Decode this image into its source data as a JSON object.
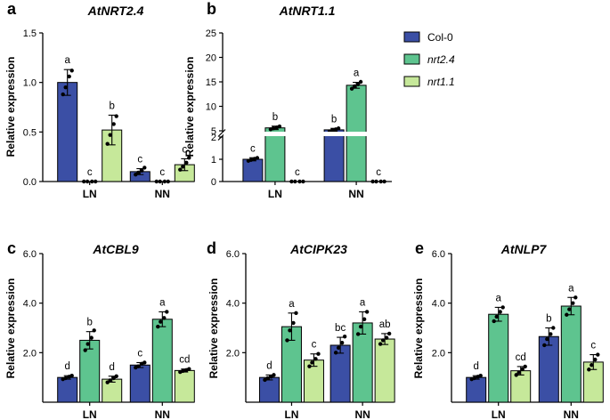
{
  "legend": {
    "entries": [
      {
        "label": "Col-0",
        "italic": false
      },
      {
        "label": "nrt2.4",
        "italic": true
      },
      {
        "label": "nrt1.1",
        "italic": true
      }
    ]
  },
  "series_colors": [
    "#3b4fa5",
    "#5ec48f",
    "#c6e89a"
  ],
  "chart_data": [
    {
      "type": "bar",
      "panel": "a",
      "title": "AtNRT2.4",
      "ylabel": "Relative expression",
      "ylim": [
        0,
        1.5
      ],
      "yticks": [
        0,
        0.5,
        1.0,
        1.5
      ],
      "ytick_labels": [
        "0.0",
        "0.5",
        "1.0",
        "1.5"
      ],
      "categories": [
        "LN",
        "NN"
      ],
      "series": [
        {
          "name": "Col-0",
          "values": [
            1.0,
            0.1
          ],
          "errors": [
            0.13,
            0.03
          ],
          "letters": [
            "a",
            "c"
          ],
          "points": [
            [
              0.88,
              0.95,
              1.06,
              1.12
            ],
            [
              0.07,
              0.09,
              0.11,
              0.14
            ]
          ]
        },
        {
          "name": "nrt2.4",
          "values": [
            0.0,
            0.0
          ],
          "errors": [
            0.005,
            0.005
          ],
          "letters": [
            "c",
            "c"
          ],
          "points": [
            [
              0,
              0,
              0,
              0
            ],
            [
              0,
              0,
              0,
              0
            ]
          ]
        },
        {
          "name": "nrt1.1",
          "values": [
            0.52,
            0.17
          ],
          "errors": [
            0.15,
            0.06
          ],
          "letters": [
            "b",
            "c"
          ],
          "points": [
            [
              0.38,
              0.47,
              0.58,
              0.66
            ],
            [
              0.12,
              0.15,
              0.19,
              0.24
            ]
          ]
        }
      ]
    },
    {
      "type": "bar",
      "panel": "b",
      "title": "AtNRT1.1",
      "ylabel": "Relative expression",
      "broken_axis": true,
      "ylim_lower": [
        0,
        2
      ],
      "ylim_upper": [
        5,
        25
      ],
      "yticks_lower": [
        0,
        1,
        2
      ],
      "yticks_upper": [
        5,
        10,
        15,
        20,
        25
      ],
      "categories": [
        "LN",
        "NN"
      ],
      "series": [
        {
          "name": "Col-0",
          "values": [
            1.0,
            5.2
          ],
          "errors": [
            0.07,
            0.3
          ],
          "letters": [
            "c",
            "b"
          ],
          "points": [
            [
              0.93,
              0.97,
              1.02,
              1.06
            ],
            [
              4.9,
              5.1,
              5.3,
              5.5
            ]
          ]
        },
        {
          "name": "nrt2.4",
          "values": [
            5.6,
            14.3
          ],
          "errors": [
            0.35,
            0.6
          ],
          "letters": [
            "b",
            "a"
          ],
          "points": [
            [
              5.3,
              5.5,
              5.7,
              5.9
            ],
            [
              13.6,
              14.1,
              14.5,
              15.0
            ]
          ]
        },
        {
          "name": "nrt1.1",
          "values": [
            0.0,
            0.0
          ],
          "errors": [
            0.005,
            0.005
          ],
          "letters": [
            "c",
            "c"
          ],
          "points": [
            [
              0,
              0,
              0,
              0
            ],
            [
              0,
              0,
              0,
              0
            ]
          ]
        }
      ]
    },
    {
      "type": "bar",
      "panel": "c",
      "title": "AtCBL9",
      "ylabel": "Relative expression",
      "ylim": [
        0,
        6
      ],
      "yticks": [
        2,
        4,
        6
      ],
      "ytick_labels": [
        "2.0",
        "4.0",
        "6.0"
      ],
      "categories": [
        "LN",
        "NN"
      ],
      "series": [
        {
          "name": "Col-0",
          "values": [
            1.0,
            1.5
          ],
          "errors": [
            0.07,
            0.1
          ],
          "letters": [
            "d",
            "c"
          ],
          "points": [
            [
              0.93,
              0.97,
              1.03,
              1.07
            ],
            [
              1.4,
              1.45,
              1.55,
              1.6
            ]
          ]
        },
        {
          "name": "nrt2.4",
          "values": [
            2.5,
            3.35
          ],
          "errors": [
            0.35,
            0.3
          ],
          "letters": [
            "b",
            "a"
          ],
          "points": [
            [
              2.1,
              2.35,
              2.6,
              2.9
            ],
            [
              3.05,
              3.25,
              3.4,
              3.65
            ]
          ]
        },
        {
          "name": "nrt1.1",
          "values": [
            0.93,
            1.28
          ],
          "errors": [
            0.12,
            0.06
          ],
          "letters": [
            "d",
            "cd"
          ],
          "points": [
            [
              0.8,
              0.88,
              0.97,
              1.05
            ],
            [
              1.22,
              1.26,
              1.3,
              1.34
            ]
          ]
        }
      ]
    },
    {
      "type": "bar",
      "panel": "d",
      "title": "AtCIPK23",
      "ylabel": "Relative expression",
      "ylim": [
        0,
        6
      ],
      "yticks": [
        2,
        4,
        6
      ],
      "ytick_labels": [
        "2.0",
        "4.0",
        "6.0"
      ],
      "categories": [
        "LN",
        "NN"
      ],
      "series": [
        {
          "name": "Col-0",
          "values": [
            1.0,
            2.3
          ],
          "errors": [
            0.1,
            0.32
          ],
          "letters": [
            "d",
            "bc"
          ],
          "points": [
            [
              0.9,
              0.97,
              1.03,
              1.1
            ],
            [
              2.0,
              2.2,
              2.4,
              2.65
            ]
          ]
        },
        {
          "name": "nrt2.4",
          "values": [
            3.05,
            3.2
          ],
          "errors": [
            0.55,
            0.45
          ],
          "letters": [
            "a",
            "a"
          ],
          "points": [
            [
              2.5,
              2.9,
              3.2,
              3.6
            ],
            [
              2.75,
              3.05,
              3.35,
              3.65
            ]
          ]
        },
        {
          "name": "nrt1.1",
          "values": [
            1.7,
            2.55
          ],
          "errors": [
            0.25,
            0.22
          ],
          "letters": [
            "c",
            "ab"
          ],
          "points": [
            [
              1.45,
              1.6,
              1.75,
              1.95
            ],
            [
              2.35,
              2.5,
              2.6,
              2.77
            ]
          ]
        }
      ]
    },
    {
      "type": "bar",
      "panel": "e",
      "title": "AtNLP7",
      "ylabel": "Relative expression",
      "ylim": [
        0,
        6
      ],
      "yticks": [
        2,
        4,
        6
      ],
      "ytick_labels": [
        "2.0",
        "4.0",
        "6.0"
      ],
      "categories": [
        "LN",
        "NN"
      ],
      "series": [
        {
          "name": "Col-0",
          "values": [
            1.0,
            2.65
          ],
          "errors": [
            0.07,
            0.35
          ],
          "letters": [
            "d",
            "b"
          ],
          "points": [
            [
              0.93,
              0.97,
              1.03,
              1.07
            ],
            [
              2.3,
              2.55,
              2.75,
              3.0
            ]
          ]
        },
        {
          "name": "nrt2.4",
          "values": [
            3.55,
            3.88
          ],
          "errors": [
            0.28,
            0.35
          ],
          "letters": [
            "a",
            "a"
          ],
          "points": [
            [
              3.27,
              3.45,
              3.65,
              3.83
            ],
            [
              3.53,
              3.75,
              4.0,
              4.23
            ]
          ]
        },
        {
          "name": "nrt1.1",
          "values": [
            1.27,
            1.62
          ],
          "errors": [
            0.17,
            0.3
          ],
          "letters": [
            "cd",
            "c"
          ],
          "points": [
            [
              1.1,
              1.2,
              1.33,
              1.44
            ],
            [
              1.32,
              1.5,
              1.72,
              1.92
            ]
          ]
        }
      ]
    }
  ]
}
